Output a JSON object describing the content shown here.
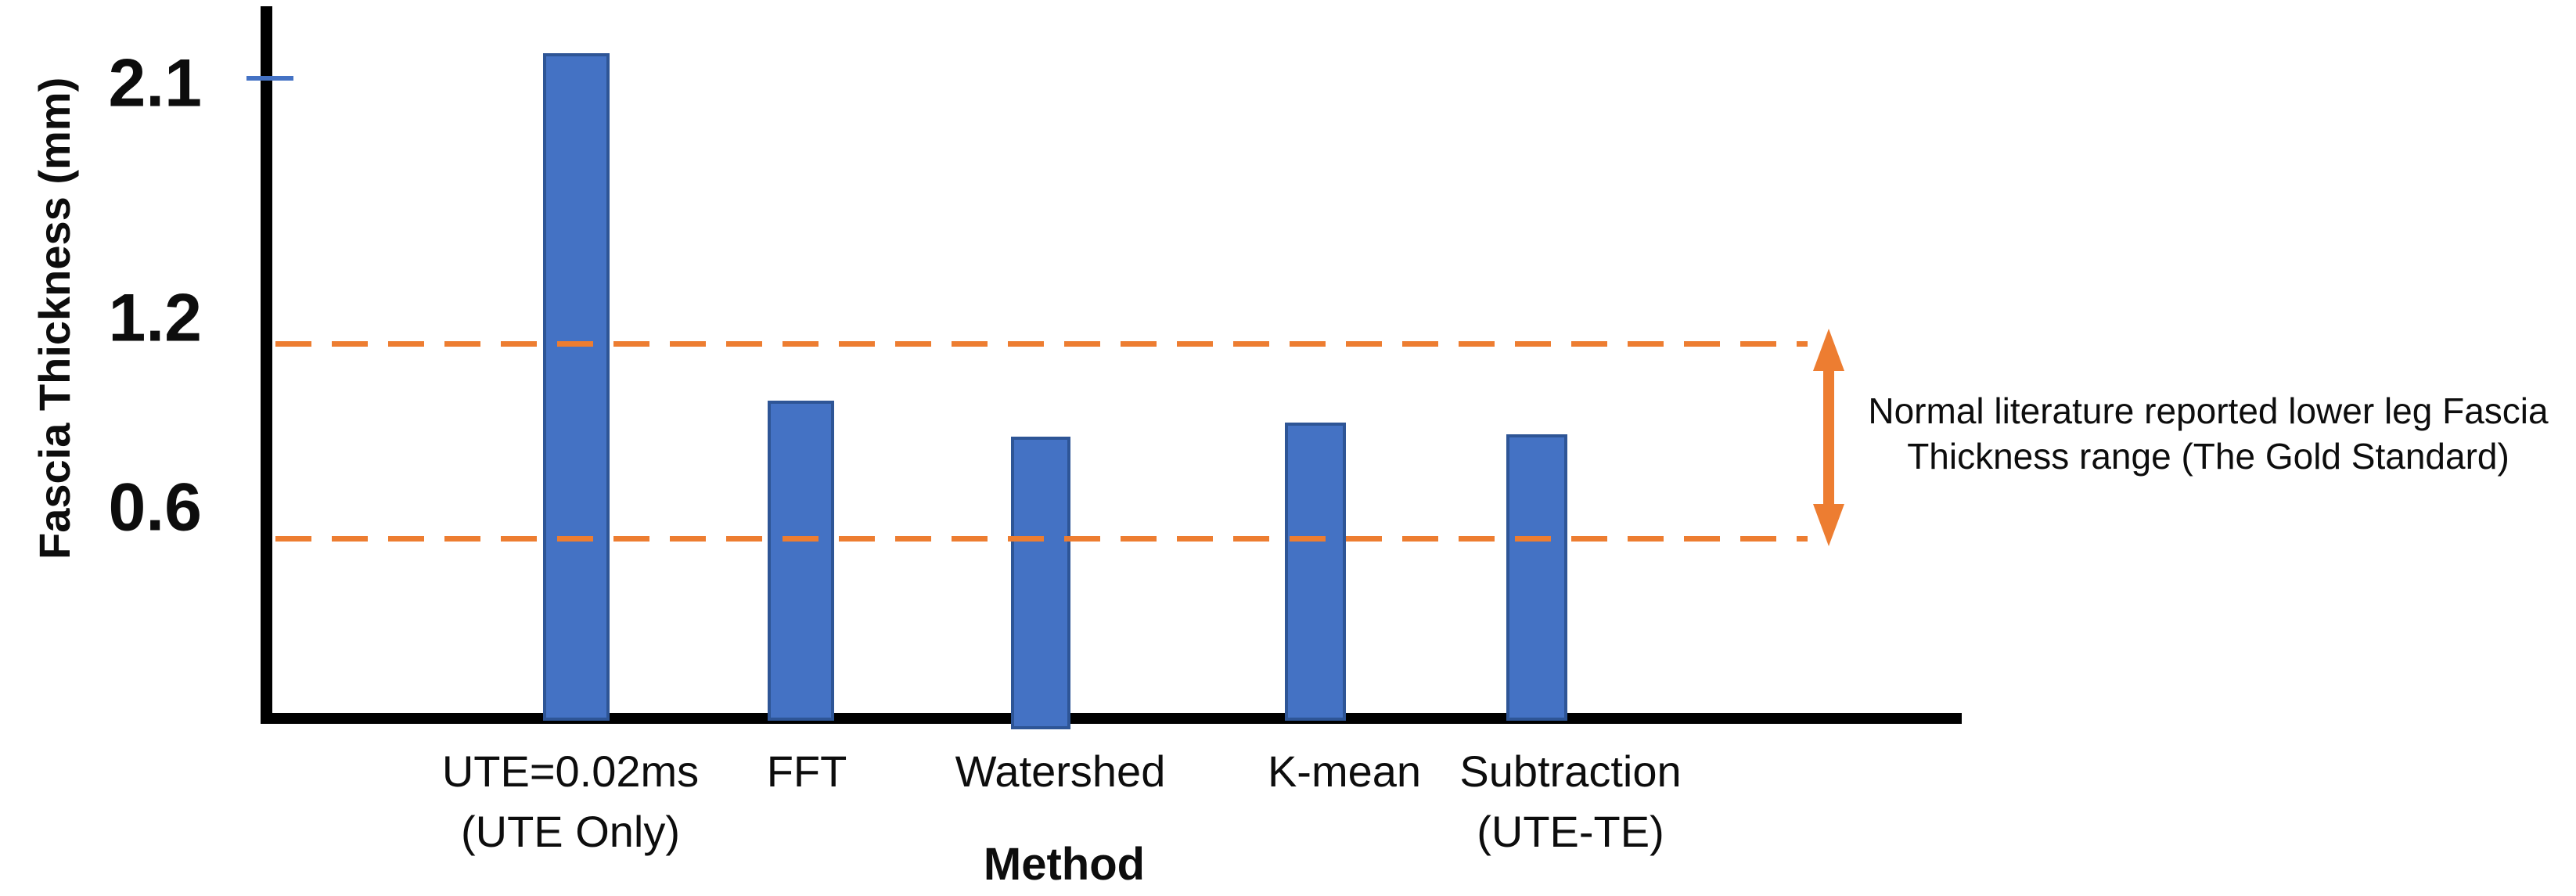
{
  "chart_data": {
    "type": "bar",
    "title": "",
    "xlabel": "Method",
    "ylabel": "Fascia Thickness (mm)",
    "categories": [
      {
        "label": "UTE=0.02ms",
        "sublabel": "(UTE Only)"
      },
      {
        "label": "FFT",
        "sublabel": ""
      },
      {
        "label": "Watershed",
        "sublabel": ""
      },
      {
        "label": "K-mean",
        "sublabel": ""
      },
      {
        "label": "Subtraction",
        "sublabel": "(UTE-TE)"
      }
    ],
    "values": [
      2.19,
      0.96,
      0.83,
      0.88,
      0.84
    ],
    "unit": "mm",
    "yticks": [
      "2.1",
      "1.2",
      "0.6"
    ],
    "ytick_values": [
      2.1,
      1.2,
      0.6
    ],
    "ylim": [
      0,
      2.4
    ],
    "grid": false,
    "legend": "none",
    "bar_color": "#4472C4",
    "bar_border_color": "#2E5596",
    "highlight_tick": {
      "value": 2.1,
      "color": "#4472C4"
    },
    "reference_band": {
      "high": 1.16,
      "low": 0.47,
      "line_style": "dashed",
      "color": "#ED7D31",
      "label_lines": [
        "Normal literature reported lower leg Fascia",
        "Thickness range (The Gold Standard)"
      ]
    }
  }
}
